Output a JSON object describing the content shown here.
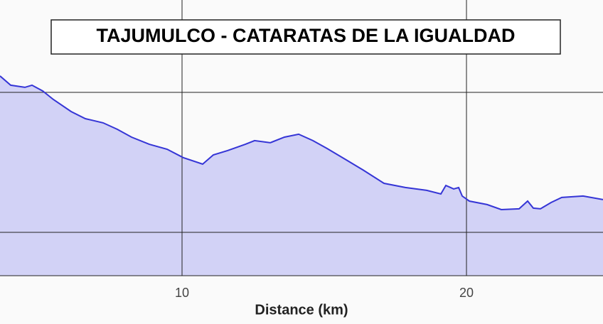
{
  "chart_data": {
    "type": "area",
    "title": "TAJUMULCO - CATARATAS DE LA IGUALDAD",
    "x_label": "Distance (km)",
    "x": [
      3.6,
      3.975,
      4.475,
      4.725,
      5.1,
      5.475,
      6.1,
      6.6,
      7.225,
      7.725,
      8.225,
      8.85,
      9.475,
      10.05,
      10.725,
      11.1,
      11.6,
      12.225,
      12.55,
      13.1,
      13.6,
      14.1,
      14.6,
      15.1,
      15.725,
      16.35,
      17.1,
      17.85,
      18.6,
      19.1,
      19.275,
      19.55,
      19.725,
      19.85,
      20.1,
      20.725,
      21.225,
      21.85,
      22.15,
      22.35,
      22.6,
      22.975,
      23.35,
      24.1,
      24.8
    ],
    "values": [
      2117,
      2051,
      2036,
      2051,
      2010,
      1949,
      1863,
      1812,
      1782,
      1736,
      1680,
      1629,
      1594,
      1533,
      1487,
      1553,
      1584,
      1629,
      1655,
      1640,
      1680,
      1701,
      1655,
      1599,
      1523,
      1447,
      1350,
      1320,
      1300,
      1274,
      1335,
      1310,
      1320,
      1259,
      1223,
      1198,
      1162,
      1168,
      1223,
      1173,
      1168,
      1213,
      1249,
      1259,
      1234
    ],
    "line_color": "#3535d6",
    "fill_color": "#d2d2f6",
    "xlim": [
      3.6,
      24.8
    ],
    "xticks": [
      10,
      20
    ],
    "ylim": [
      690,
      2660
    ],
    "yticks": [
      1000,
      2000
    ],
    "grid": true
  }
}
